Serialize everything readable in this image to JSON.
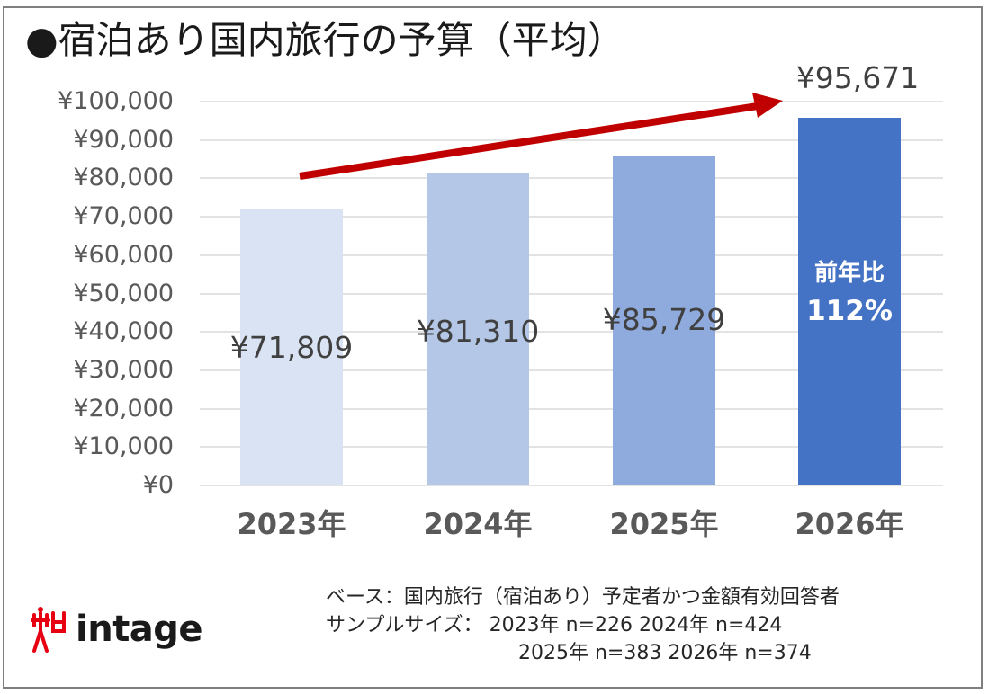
{
  "title": "●宿泊あり国内旅行の予算（平均）",
  "chart_data": {
    "type": "bar",
    "title": "宿泊あり国内旅行の予算（平均）",
    "categories": [
      "2023年",
      "2024年",
      "2025年",
      "2026年"
    ],
    "values": [
      71809,
      81310,
      85729,
      95671
    ],
    "value_labels": [
      "¥71,809",
      "¥81,310",
      "¥85,729",
      "¥95,671"
    ],
    "bar_colors": [
      "#dae3f3",
      "#b4c7e7",
      "#8faadc",
      "#4472c4"
    ],
    "xlabel": "",
    "ylabel": "",
    "ylim": [
      0,
      100000
    ],
    "yticks": [
      0,
      10000,
      20000,
      30000,
      40000,
      50000,
      60000,
      70000,
      80000,
      90000,
      100000
    ],
    "ytick_labels": [
      "¥0",
      "¥10,000",
      "¥20,000",
      "¥30,000",
      "¥40,000",
      "¥50,000",
      "¥60,000",
      "¥70,000",
      "¥80,000",
      "¥90,000",
      "¥100,000"
    ],
    "grid": true,
    "legend": null,
    "annotations": [
      {
        "text": "前年比\n112%",
        "target": "2026年",
        "position": "inside-bar"
      },
      {
        "text": "upward trend arrow",
        "color": "#c00000",
        "from": "2023年",
        "to": "2026年"
      }
    ]
  },
  "yoy": {
    "line1": "前年比",
    "line2": "112%"
  },
  "top_label": "¥95,671",
  "accent_color": "#c00000",
  "notes": {
    "base": "ベース：国内旅行（宿泊あり）予定者かつ金額有効回答者",
    "sample_line1": "サンプルサイズ：  2023年 n=226    2024年 n=424",
    "sample_line2": "2025年 n=383    2026年 n=374"
  },
  "logo": {
    "text": "intage",
    "mark_color": "#e60012"
  }
}
